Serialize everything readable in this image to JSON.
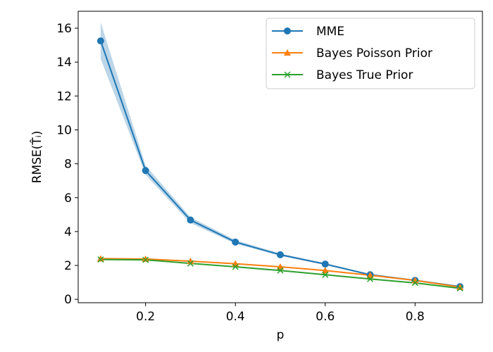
{
  "chart_data": {
    "type": "line",
    "title": "",
    "xlabel": "p",
    "ylabel": "RMSE(T̂ᵢ)",
    "xlim": [
      0.05,
      0.95
    ],
    "ylim": [
      -0.2,
      17.0
    ],
    "x": [
      0.1,
      0.2,
      0.3,
      0.4,
      0.5,
      0.6,
      0.7,
      0.8,
      0.9
    ],
    "xticks": [
      0.2,
      0.4,
      0.6,
      0.8
    ],
    "xtick_labels": [
      "0.2",
      "0.4",
      "0.6",
      "0.8"
    ],
    "yticks": [
      0,
      2,
      4,
      6,
      8,
      10,
      12,
      14,
      16
    ],
    "ytick_labels": [
      "0",
      "2",
      "4",
      "6",
      "8",
      "10",
      "12",
      "14",
      "16"
    ],
    "grid": false,
    "legend_position": "top-right",
    "series": [
      {
        "name": "MME",
        "color": "#1f77b4",
        "marker": "circle",
        "values": [
          15.25,
          7.6,
          4.68,
          3.38,
          2.63,
          2.08,
          1.45,
          1.12,
          0.75
        ],
        "band_lower": [
          14.2,
          7.35,
          4.5,
          3.28,
          2.57,
          2.03,
          1.4,
          1.08,
          0.72
        ],
        "band_upper": [
          16.35,
          7.9,
          4.85,
          3.5,
          2.7,
          2.13,
          1.5,
          1.16,
          0.79
        ]
      },
      {
        "name": "Bayes Poisson Prior",
        "color": "#ff7f0e",
        "marker": "triangle",
        "values": [
          2.4,
          2.38,
          2.25,
          2.1,
          1.92,
          1.7,
          1.42,
          1.12,
          0.72
        ]
      },
      {
        "name": "Bayes True Prior",
        "color": "#2ca02c",
        "marker": "x",
        "values": [
          2.35,
          2.33,
          2.12,
          1.92,
          1.7,
          1.45,
          1.2,
          0.97,
          0.65
        ]
      }
    ]
  }
}
